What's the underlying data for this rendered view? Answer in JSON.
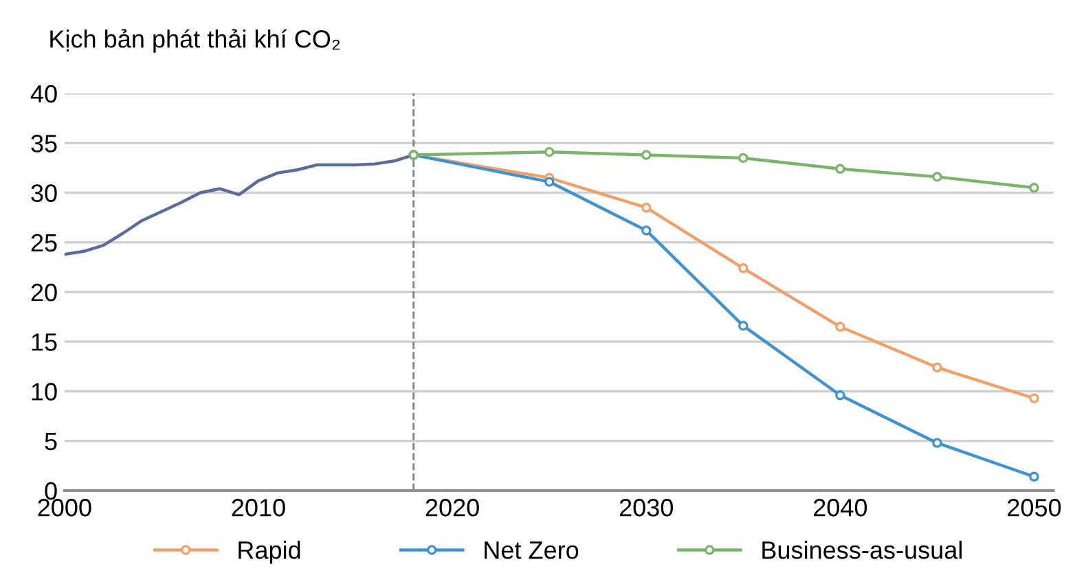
{
  "chart_data": {
    "type": "line",
    "title": "Kịch bản phát thải khí CO₂",
    "series": [
      {
        "color": "#5b6b9e",
        "marker": "none",
        "x": [
          2000,
          2001,
          2002,
          2003,
          2004,
          2005,
          2006,
          2007,
          2008,
          2009,
          2010,
          2011,
          2012,
          2013,
          2014,
          2015,
          2016,
          2017,
          2018
        ],
        "values": [
          23.8,
          24.1,
          24.7,
          25.9,
          27.2,
          28.1,
          29.0,
          30.0,
          30.4,
          29.8,
          31.2,
          32.0,
          32.3,
          32.8,
          32.8,
          32.8,
          32.9,
          33.2,
          33.8
        ]
      },
      {
        "name": "Rapid",
        "color": "#f2a06a",
        "marker": "circle",
        "x": [
          2018,
          2025,
          2030,
          2035,
          2040,
          2045,
          2050
        ],
        "values": [
          33.8,
          31.5,
          28.5,
          22.4,
          16.5,
          12.4,
          9.3
        ]
      },
      {
        "name": "Net Zero",
        "color": "#3f93d0",
        "marker": "circle",
        "x": [
          2018,
          2025,
          2030,
          2035,
          2040,
          2045,
          2050
        ],
        "values": [
          33.8,
          31.1,
          26.2,
          16.6,
          9.6,
          4.8,
          1.4
        ]
      },
      {
        "name": "Business-as-usual",
        "color": "#7bb46a",
        "marker": "circle",
        "x": [
          2018,
          2025,
          2030,
          2035,
          2040,
          2045,
          2050
        ],
        "values": [
          33.8,
          34.1,
          33.8,
          33.5,
          32.4,
          31.6,
          30.5
        ]
      }
    ],
    "xlim": [
      2000,
      2051
    ],
    "xticks": [
      2000,
      2010,
      2020,
      2030,
      2040,
      2050
    ],
    "ylim": [
      0,
      40
    ],
    "yticks": [
      0,
      5,
      10,
      15,
      20,
      25,
      30,
      35,
      40
    ],
    "ref_lines": [
      {
        "axis": "x",
        "value": 2018,
        "color": "#808080",
        "line_style": "dashed"
      }
    ],
    "grid": "y",
    "legend": "bottom"
  }
}
